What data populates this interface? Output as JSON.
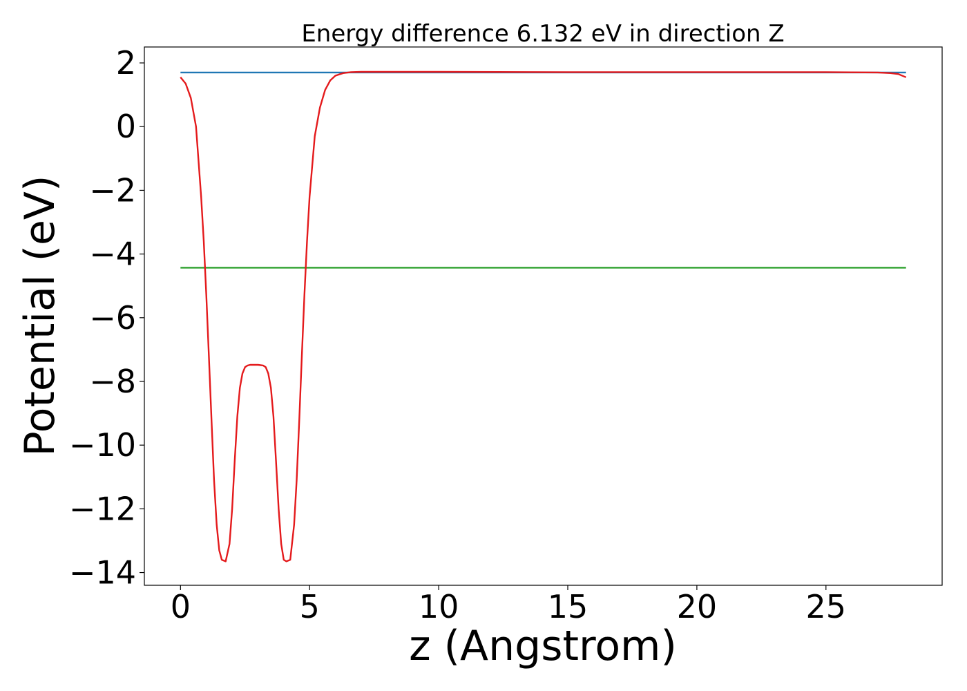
{
  "chart_data": {
    "type": "line",
    "title": "Energy difference 6.132 eV in direction Z",
    "xlabel": "z (Angstrom)",
    "ylabel": "Potential (eV)",
    "xlim": [
      -1.4,
      29.5
    ],
    "ylim": [
      -14.4,
      2.5
    ],
    "xticks": [
      0,
      5,
      10,
      15,
      20,
      25
    ],
    "yticks": [
      2,
      0,
      -2,
      -4,
      -6,
      -8,
      -10,
      -12,
      -14
    ],
    "xtick_labels": [
      "0",
      "5",
      "10",
      "15",
      "20",
      "25"
    ],
    "ytick_labels": [
      "2",
      "0",
      "−2",
      "−4",
      "−6",
      "−8",
      "−10",
      "−12",
      "−14"
    ],
    "grid": false,
    "legend": false,
    "series": [
      {
        "color": "#1f77b4",
        "x": [
          0,
          28.1
        ],
        "y": [
          1.7,
          1.7
        ]
      },
      {
        "color": "#2ca02c",
        "x": [
          0,
          28.1
        ],
        "y": [
          -4.43,
          -4.43
        ]
      },
      {
        "color": "#e41a1c",
        "x": [
          0,
          0.2,
          0.4,
          0.6,
          0.8,
          0.9,
          1.0,
          1.1,
          1.2,
          1.3,
          1.4,
          1.5,
          1.6,
          1.75,
          1.9,
          2.0,
          2.1,
          2.2,
          2.3,
          2.4,
          2.5,
          2.6,
          2.7,
          2.8,
          3.0,
          3.2,
          3.3,
          3.4,
          3.5,
          3.6,
          3.7,
          3.8,
          3.9,
          4.0,
          4.1,
          4.25,
          4.4,
          4.5,
          4.6,
          4.7,
          4.8,
          4.9,
          5.0,
          5.2,
          5.4,
          5.6,
          5.8,
          6.0,
          6.3,
          6.6,
          7.0,
          7.5,
          8.0,
          10.0,
          15.0,
          20.0,
          25.0,
          27.0,
          27.5,
          27.8,
          28.1
        ],
        "y": [
          1.55,
          1.35,
          0.9,
          0.0,
          -2.2,
          -3.6,
          -5.3,
          -7.2,
          -9.2,
          -11.1,
          -12.5,
          -13.3,
          -13.6,
          -13.65,
          -13.1,
          -12.0,
          -10.5,
          -9.1,
          -8.2,
          -7.75,
          -7.55,
          -7.5,
          -7.48,
          -7.48,
          -7.48,
          -7.5,
          -7.55,
          -7.75,
          -8.2,
          -9.1,
          -10.5,
          -12.0,
          -13.1,
          -13.6,
          -13.65,
          -13.6,
          -12.5,
          -11.1,
          -9.2,
          -7.2,
          -5.3,
          -3.6,
          -2.2,
          -0.3,
          0.6,
          1.15,
          1.45,
          1.6,
          1.68,
          1.71,
          1.72,
          1.72,
          1.72,
          1.72,
          1.71,
          1.71,
          1.71,
          1.7,
          1.68,
          1.65,
          1.55
        ]
      }
    ]
  }
}
